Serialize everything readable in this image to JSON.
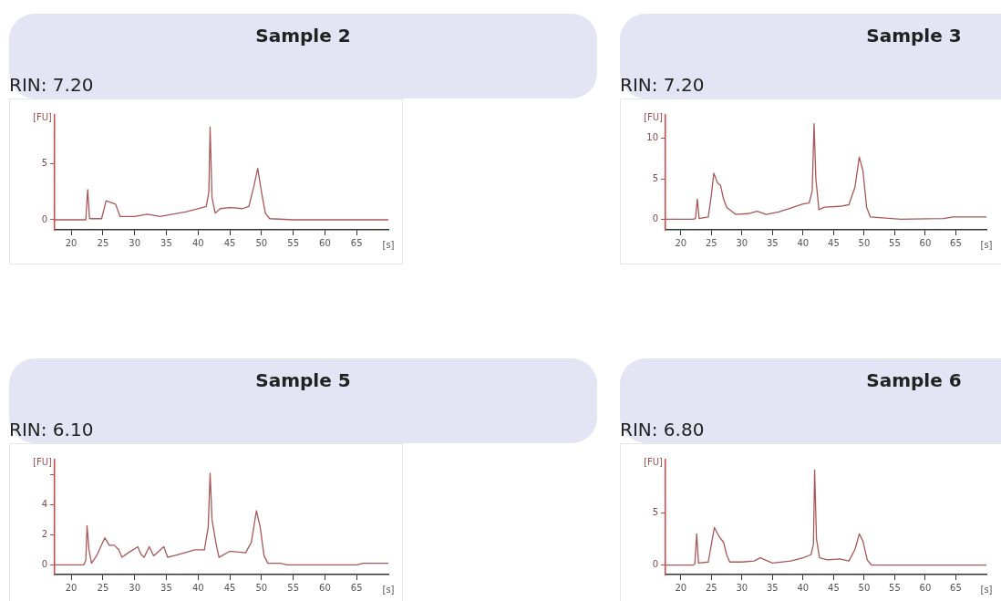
{
  "chart_data": [
    {
      "type": "line",
      "title": "Sample 2",
      "subtitle": "RIN: 7.20",
      "ylabel": "[FU]",
      "marker": "none",
      "line_style": "solid",
      "grid": false,
      "legend": false,
      "xlabel": "[s]",
      "xlim": [
        17.4,
        70
      ],
      "xticks": [
        20,
        25,
        30,
        35,
        40,
        45,
        50,
        55,
        60,
        65
      ],
      "ylim": [
        -0.9,
        9.4
      ],
      "yticks": [
        0,
        5
      ],
      "series": [
        {
          "color": "#a85858",
          "x": [
            17.4,
            22,
            22.3,
            22.6,
            22.9,
            24.8,
            25.5,
            26.5,
            27,
            27.7,
            30,
            32,
            34,
            36,
            38,
            40,
            41.3,
            41.7,
            41.9,
            42.2,
            42.7,
            43.5,
            45,
            47,
            48,
            48.8,
            49.4,
            50,
            50.6,
            51.3,
            55,
            60,
            70
          ],
          "values": [
            0,
            0,
            0,
            2.7,
            0.1,
            0.1,
            1.7,
            1.5,
            1.4,
            0.3,
            0.3,
            0.5,
            0.3,
            0.5,
            0.7,
            1.0,
            1.2,
            2.5,
            8.3,
            2.0,
            0.6,
            1.0,
            1.1,
            1.0,
            1.2,
            3.0,
            4.6,
            2.5,
            0.6,
            0.1,
            0,
            0,
            0
          ]
        }
      ]
    },
    {
      "type": "line",
      "title": "Sample 3",
      "subtitle": "RIN: 7.20",
      "ylabel": "[FU]",
      "marker": "none",
      "line_style": "solid",
      "grid": false,
      "legend": false,
      "xlabel": "[s]",
      "xlim": [
        17.5,
        70
      ],
      "xticks": [
        20,
        25,
        30,
        35,
        40,
        45,
        50,
        55,
        60,
        65
      ],
      "ylim": [
        -1.3,
        12.9
      ],
      "yticks": [
        0,
        5,
        10
      ],
      "series": [
        {
          "color": "#a85858",
          "x": [
            17.5,
            22,
            22.4,
            22.7,
            23,
            24.5,
            25,
            25.4,
            26,
            26.5,
            27,
            27.5,
            28.3,
            29,
            31,
            32.5,
            34,
            36,
            38,
            40,
            41,
            41.5,
            41.8,
            42.1,
            42.6,
            43.5,
            46,
            47.5,
            48.5,
            49.2,
            49.8,
            50.4,
            51,
            54.5,
            56,
            63,
            64.5,
            70
          ],
          "values": [
            0,
            0,
            0.1,
            2.5,
            0.1,
            0.3,
            3,
            5.7,
            4.5,
            4.2,
            2.5,
            1.5,
            1.0,
            0.6,
            0.7,
            1.0,
            0.6,
            0.9,
            1.4,
            1.9,
            2.0,
            3.5,
            11.8,
            5,
            1.2,
            1.5,
            1.6,
            1.8,
            4,
            7.7,
            6,
            1.5,
            0.3,
            0.1,
            0,
            0.1,
            0.3,
            0.3
          ]
        }
      ]
    },
    {
      "type": "line",
      "title": "Sample 5",
      "subtitle": "RIN: 6.10",
      "ylabel": "[FU]",
      "marker": "none",
      "line_style": "solid",
      "grid": false,
      "legend": false,
      "xlabel": "[s]",
      "xlim": [
        17.4,
        70
      ],
      "xticks": [
        20,
        25,
        30,
        35,
        40,
        45,
        50,
        55,
        60,
        65
      ],
      "ylim": [
        -0.65,
        7.0
      ],
      "yticks": [
        0,
        2,
        4,
        {
          "value": 6,
          "label": null
        }
      ],
      "series": [
        {
          "color": "#a85858",
          "x": [
            17.4,
            22,
            22.3,
            22.5,
            22.8,
            23.2,
            24,
            25.3,
            26,
            26.8,
            27.5,
            28,
            29,
            30.5,
            31,
            31.5,
            32.3,
            33,
            34.6,
            35.2,
            37,
            39.5,
            41,
            41.6,
            41.9,
            42.2,
            42.8,
            43.3,
            45,
            47.5,
            48.4,
            49.2,
            49.8,
            50.4,
            51,
            53,
            54,
            65,
            66,
            70
          ],
          "values": [
            0,
            0,
            0.3,
            2.6,
            1.0,
            0.1,
            0.6,
            1.8,
            1.3,
            1.3,
            1.0,
            0.5,
            0.8,
            1.2,
            0.7,
            0.5,
            1.2,
            0.6,
            1.2,
            0.5,
            0.7,
            1.0,
            1.0,
            2.5,
            6.1,
            3,
            1.5,
            0.5,
            0.9,
            0.8,
            1.5,
            3.6,
            2.5,
            0.6,
            0.1,
            0.1,
            0,
            0,
            0.1,
            0.1
          ]
        }
      ]
    },
    {
      "type": "line",
      "title": "Sample 6",
      "subtitle": "RIN: 6.80",
      "ylabel": "[FU]",
      "marker": "none",
      "line_style": "solid",
      "grid": false,
      "legend": false,
      "xlabel": "[s]",
      "xlim": [
        17.5,
        70
      ],
      "xticks": [
        20,
        25,
        30,
        35,
        40,
        45,
        50,
        55,
        60,
        65
      ],
      "ylim": [
        -0.9,
        10.1
      ],
      "yticks": [
        0,
        5
      ],
      "series": [
        {
          "color": "#a85858",
          "x": [
            17.5,
            22,
            22.3,
            22.6,
            22.9,
            24.5,
            25,
            25.5,
            26.3,
            27,
            27.5,
            28,
            30,
            32,
            33,
            35,
            38,
            40,
            41.3,
            41.7,
            41.9,
            42.2,
            42.7,
            44,
            46,
            47.5,
            48.5,
            49.2,
            49.8,
            50.5,
            51.2,
            70
          ],
          "values": [
            0,
            0,
            0.1,
            3.0,
            0.2,
            0.3,
            2,
            3.6,
            2.7,
            2.2,
            1.0,
            0.3,
            0.3,
            0.4,
            0.7,
            0.2,
            0.4,
            0.7,
            1.0,
            2,
            9.1,
            2.5,
            0.7,
            0.5,
            0.6,
            0.4,
            1.5,
            3.0,
            2.3,
            0.5,
            0,
            0
          ]
        }
      ]
    }
  ]
}
